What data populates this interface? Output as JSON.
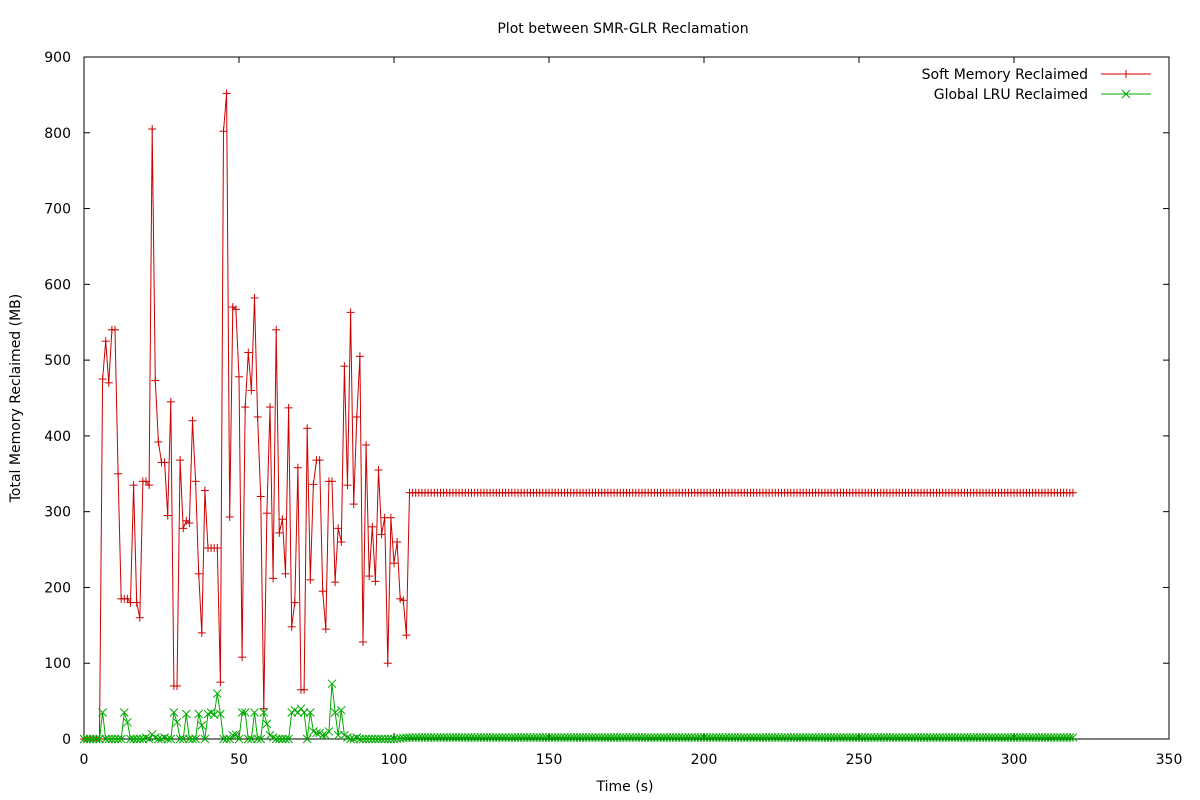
{
  "chart_data": {
    "type": "line",
    "title": "Plot between SMR-GLR Reclamation",
    "xlabel": "Time (s)",
    "ylabel": "Total Memory Reclaimed (MB)",
    "xlim": [
      0,
      350
    ],
    "ylim": [
      0,
      900
    ],
    "x_ticks": [
      0,
      50,
      100,
      150,
      200,
      250,
      300,
      350
    ],
    "y_ticks": [
      0,
      100,
      200,
      300,
      400,
      500,
      600,
      700,
      800,
      900
    ],
    "grid": false,
    "legend_position": "top-right",
    "series": [
      {
        "name": "Soft Memory Reclaimed",
        "color": "#cc0000",
        "marker": "plus",
        "points": [
          [
            0,
            0
          ],
          [
            1,
            0
          ],
          [
            2,
            0
          ],
          [
            3,
            0
          ],
          [
            4,
            0
          ],
          [
            5,
            0
          ],
          [
            6,
            475
          ],
          [
            7,
            525
          ],
          [
            8,
            470
          ],
          [
            9,
            540
          ],
          [
            10,
            540
          ],
          [
            11,
            350
          ],
          [
            12,
            185
          ],
          [
            13,
            185
          ],
          [
            14,
            185
          ],
          [
            15,
            180
          ],
          [
            16,
            335
          ],
          [
            17,
            180
          ],
          [
            18,
            160
          ],
          [
            19,
            340
          ],
          [
            20,
            340
          ],
          [
            21,
            335
          ],
          [
            22,
            805
          ],
          [
            23,
            473
          ],
          [
            24,
            392
          ],
          [
            25,
            365
          ],
          [
            26,
            365
          ],
          [
            27,
            295
          ],
          [
            28,
            445
          ],
          [
            29,
            70
          ],
          [
            30,
            70
          ],
          [
            31,
            368
          ],
          [
            32,
            278
          ],
          [
            33,
            288
          ],
          [
            34,
            285
          ],
          [
            35,
            420
          ],
          [
            36,
            340
          ],
          [
            37,
            218
          ],
          [
            38,
            140
          ],
          [
            39,
            328
          ],
          [
            40,
            252
          ],
          [
            41,
            252
          ],
          [
            42,
            252
          ],
          [
            43,
            252
          ],
          [
            44,
            75
          ],
          [
            45,
            802
          ],
          [
            46,
            852
          ],
          [
            47,
            293
          ],
          [
            48,
            570
          ],
          [
            49,
            567
          ],
          [
            50,
            478
          ],
          [
            51,
            108
          ],
          [
            52,
            438
          ],
          [
            53,
            510
          ],
          [
            54,
            460
          ],
          [
            55,
            582
          ],
          [
            56,
            425
          ],
          [
            57,
            320
          ],
          [
            58,
            40
          ],
          [
            59,
            298
          ],
          [
            60,
            438
          ],
          [
            61,
            212
          ],
          [
            62,
            540
          ],
          [
            63,
            272
          ],
          [
            64,
            290
          ],
          [
            65,
            218
          ],
          [
            66,
            437
          ],
          [
            67,
            148
          ],
          [
            68,
            180
          ],
          [
            69,
            358
          ],
          [
            70,
            65
          ],
          [
            71,
            65
          ],
          [
            72,
            410
          ],
          [
            73,
            210
          ],
          [
            74,
            336
          ],
          [
            75,
            368
          ],
          [
            76,
            368
          ],
          [
            77,
            195
          ],
          [
            78,
            145
          ],
          [
            79,
            340
          ],
          [
            80,
            340
          ],
          [
            81,
            207
          ],
          [
            82,
            278
          ],
          [
            83,
            260
          ],
          [
            84,
            492
          ],
          [
            85,
            335
          ],
          [
            86,
            563
          ],
          [
            87,
            310
          ],
          [
            88,
            425
          ],
          [
            89,
            505
          ],
          [
            90,
            128
          ],
          [
            91,
            388
          ],
          [
            92,
            215
          ],
          [
            93,
            280
          ],
          [
            94,
            208
          ],
          [
            95,
            355
          ],
          [
            96,
            270
          ],
          [
            97,
            292
          ],
          [
            98,
            100
          ],
          [
            99,
            292
          ],
          [
            100,
            232
          ],
          [
            101,
            260
          ],
          [
            102,
            185
          ],
          [
            103,
            183
          ],
          [
            104,
            137
          ],
          [
            105,
            325
          ],
          [
            106,
            325
          ],
          [
            107,
            325
          ],
          [
            108,
            325
          ],
          [
            109,
            325
          ],
          [
            110,
            325
          ],
          [
            120,
            325
          ],
          [
            130,
            325
          ],
          [
            140,
            325
          ],
          [
            150,
            325
          ],
          [
            160,
            325
          ],
          [
            170,
            325
          ],
          [
            180,
            325
          ],
          [
            190,
            325
          ],
          [
            200,
            325
          ],
          [
            210,
            325
          ],
          [
            220,
            325
          ],
          [
            230,
            325
          ],
          [
            240,
            325
          ],
          [
            250,
            325
          ],
          [
            260,
            325
          ],
          [
            270,
            325
          ],
          [
            280,
            325
          ],
          [
            290,
            325
          ],
          [
            300,
            325
          ],
          [
            310,
            325
          ],
          [
            319,
            325
          ]
        ]
      },
      {
        "name": "Global LRU Reclaimed",
        "color": "#00aa00",
        "marker": "x",
        "points": [
          [
            0,
            0
          ],
          [
            1,
            0
          ],
          [
            2,
            0
          ],
          [
            3,
            0
          ],
          [
            4,
            0
          ],
          [
            5,
            0
          ],
          [
            6,
            35
          ],
          [
            7,
            0
          ],
          [
            8,
            0
          ],
          [
            9,
            0
          ],
          [
            10,
            0
          ],
          [
            11,
            0
          ],
          [
            12,
            0
          ],
          [
            13,
            35
          ],
          [
            14,
            22
          ],
          [
            15,
            0
          ],
          [
            16,
            0
          ],
          [
            17,
            0
          ],
          [
            18,
            0
          ],
          [
            19,
            0
          ],
          [
            20,
            2
          ],
          [
            21,
            0
          ],
          [
            22,
            6
          ],
          [
            23,
            2
          ],
          [
            24,
            0
          ],
          [
            25,
            0
          ],
          [
            26,
            2
          ],
          [
            27,
            0
          ],
          [
            28,
            0
          ],
          [
            29,
            35
          ],
          [
            30,
            22
          ],
          [
            31,
            0
          ],
          [
            32,
            0
          ],
          [
            33,
            33
          ],
          [
            34,
            0
          ],
          [
            35,
            0
          ],
          [
            36,
            0
          ],
          [
            37,
            33
          ],
          [
            38,
            18
          ],
          [
            39,
            0
          ],
          [
            40,
            33
          ],
          [
            41,
            35
          ],
          [
            42,
            32
          ],
          [
            43,
            60
          ],
          [
            44,
            33
          ],
          [
            45,
            0
          ],
          [
            46,
            0
          ],
          [
            47,
            0
          ],
          [
            48,
            5
          ],
          [
            49,
            6
          ],
          [
            50,
            0
          ],
          [
            51,
            35
          ],
          [
            52,
            35
          ],
          [
            53,
            0
          ],
          [
            54,
            0
          ],
          [
            55,
            35
          ],
          [
            56,
            0
          ],
          [
            57,
            0
          ],
          [
            58,
            35
          ],
          [
            59,
            20
          ],
          [
            60,
            5
          ],
          [
            61,
            2
          ],
          [
            62,
            0
          ],
          [
            63,
            0
          ],
          [
            64,
            0
          ],
          [
            65,
            0
          ],
          [
            66,
            0
          ],
          [
            67,
            35
          ],
          [
            68,
            38
          ],
          [
            69,
            35
          ],
          [
            70,
            40
          ],
          [
            71,
            35
          ],
          [
            72,
            0
          ],
          [
            73,
            35
          ],
          [
            74,
            10
          ],
          [
            75,
            8
          ],
          [
            76,
            8
          ],
          [
            77,
            5
          ],
          [
            78,
            5
          ],
          [
            79,
            10
          ],
          [
            80,
            73
          ],
          [
            81,
            35
          ],
          [
            82,
            5
          ],
          [
            83,
            38
          ],
          [
            84,
            5
          ],
          [
            85,
            2
          ],
          [
            86,
            0
          ],
          [
            87,
            0
          ],
          [
            88,
            2
          ],
          [
            89,
            0
          ],
          [
            90,
            0
          ],
          [
            91,
            0
          ],
          [
            92,
            0
          ],
          [
            93,
            0
          ],
          [
            94,
            0
          ],
          [
            95,
            0
          ],
          [
            96,
            0
          ],
          [
            97,
            0
          ],
          [
            98,
            0
          ],
          [
            99,
            0
          ],
          [
            100,
            0
          ],
          [
            105,
            2
          ],
          [
            110,
            2
          ],
          [
            120,
            2
          ],
          [
            130,
            2
          ],
          [
            140,
            2
          ],
          [
            150,
            2
          ],
          [
            160,
            2
          ],
          [
            170,
            2
          ],
          [
            180,
            2
          ],
          [
            190,
            2
          ],
          [
            200,
            2
          ],
          [
            210,
            2
          ],
          [
            220,
            2
          ],
          [
            230,
            2
          ],
          [
            240,
            2
          ],
          [
            250,
            2
          ],
          [
            260,
            2
          ],
          [
            270,
            2
          ],
          [
            280,
            2
          ],
          [
            290,
            2
          ],
          [
            300,
            2
          ],
          [
            310,
            2
          ],
          [
            319,
            2
          ]
        ]
      }
    ]
  }
}
